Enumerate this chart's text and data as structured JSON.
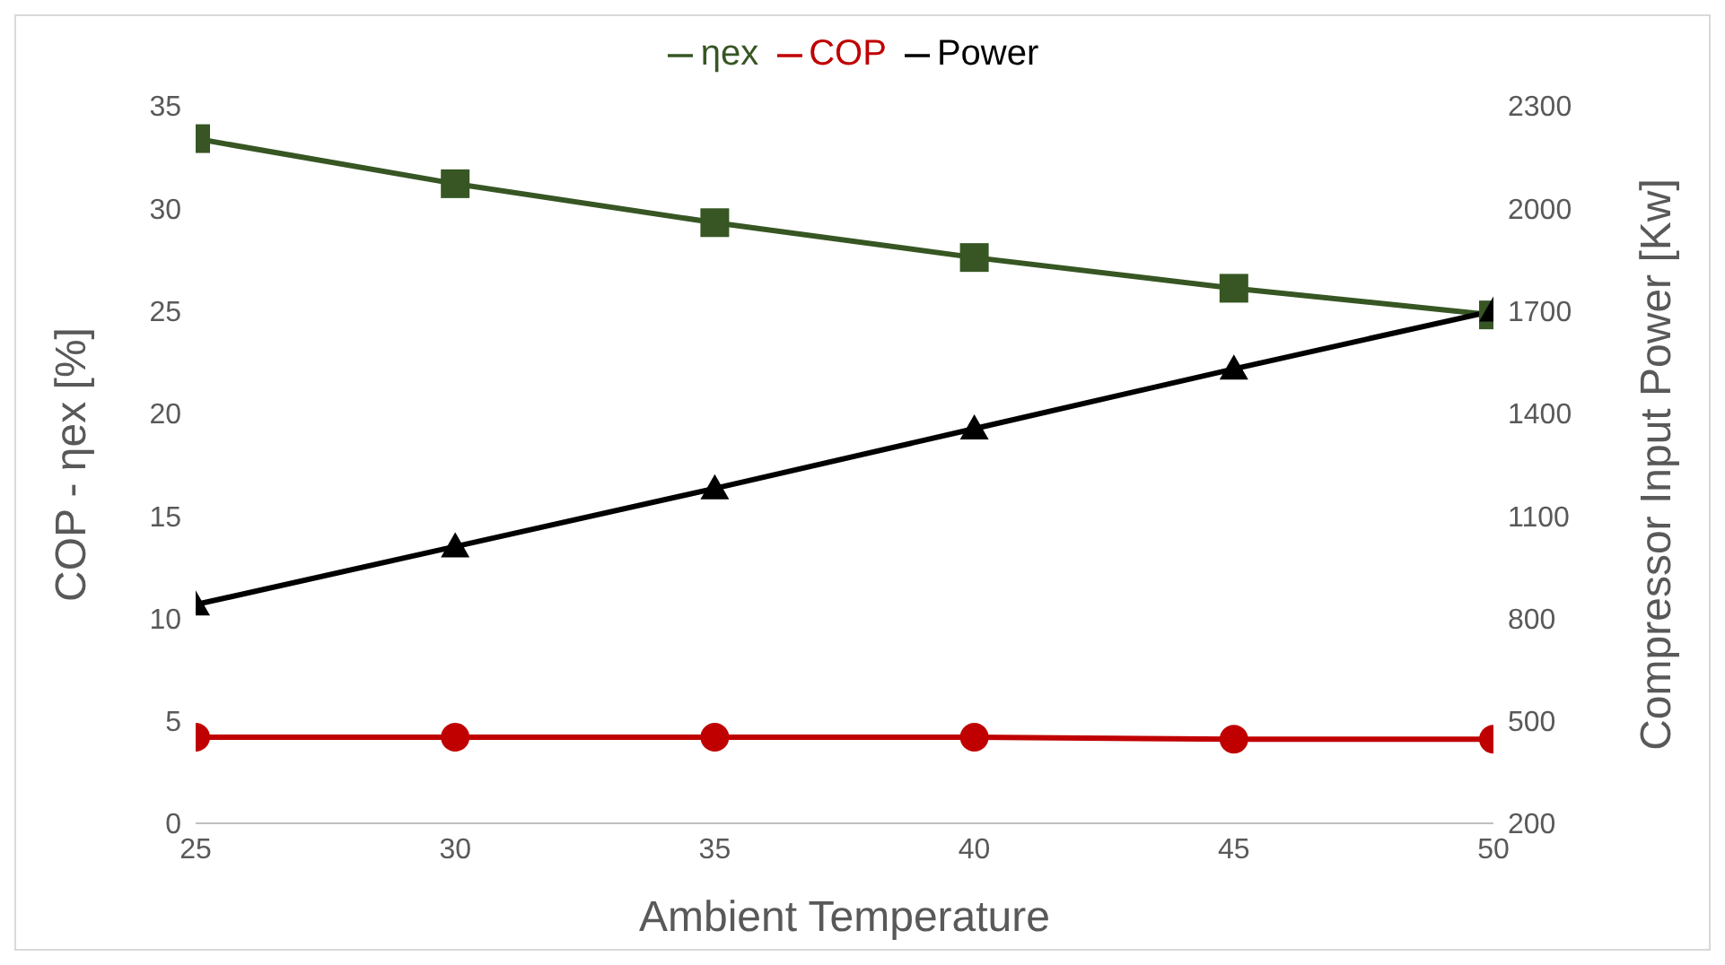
{
  "chart_data": {
    "type": "line",
    "xlabel": "Ambient Temperature",
    "ylabel": "COP - ηex [%]",
    "y2label": "Compressor Input Power [Kw]",
    "x": [
      25,
      30,
      35,
      40,
      45,
      50
    ],
    "xlim": [
      25,
      50
    ],
    "xticks": [
      25,
      30,
      35,
      40,
      45,
      50
    ],
    "ylim": [
      0,
      35
    ],
    "yticks": [
      0,
      5,
      10,
      15,
      20,
      25,
      30,
      35
    ],
    "y2lim": [
      200,
      2300
    ],
    "y2ticks": [
      200,
      500,
      800,
      1100,
      1400,
      1700,
      2000,
      2300
    ],
    "series": [
      {
        "name": "ηex",
        "color": "#375623",
        "marker": "square",
        "values": [
          33.4,
          31.2,
          29.3,
          27.6,
          26.1,
          24.8
        ]
      },
      {
        "name": "COP",
        "color": "#c00000",
        "marker": "circle",
        "values": [
          4.2,
          4.2,
          4.2,
          4.2,
          4.1,
          4.1
        ]
      },
      {
        "name": "Power",
        "color": "#000000",
        "marker": "triangle",
        "axis": "y2",
        "values": [
          840,
          1010,
          1180,
          1355,
          1530,
          1700
        ]
      }
    ],
    "grid": false,
    "legend": "top",
    "line_style": "solid"
  }
}
